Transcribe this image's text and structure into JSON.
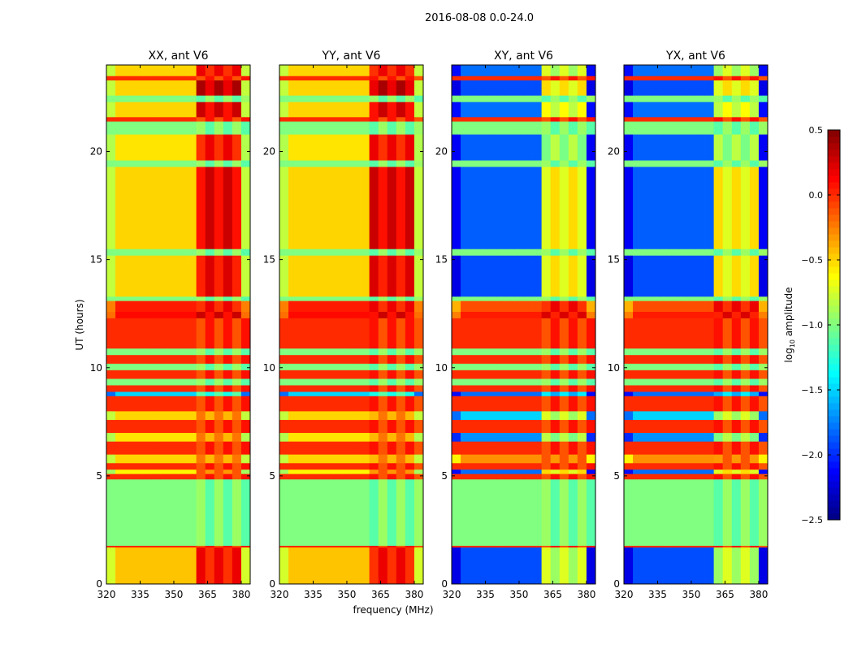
{
  "chart_data": {
    "type": "heatmap",
    "suptitle": "2016-08-08 0.0-24.0",
    "xlabel": "frequency (MHz)",
    "ylabel": "UT (hours)",
    "xlim": [
      320,
      384
    ],
    "ylim": [
      0,
      24
    ],
    "xticks": [
      "320",
      "335",
      "350",
      "365",
      "380"
    ],
    "xtick_values": [
      320,
      335,
      350,
      365,
      380
    ],
    "yticks": [
      "0",
      "5",
      "10",
      "15",
      "20"
    ],
    "ytick_values": [
      0,
      5,
      10,
      15,
      20
    ],
    "panels": [
      {
        "title": "XX, ant V6",
        "kind": "parallel"
      },
      {
        "title": "YY, ant V6",
        "kind": "parallel"
      },
      {
        "title": "XY, ant V6",
        "kind": "cross"
      },
      {
        "title": "YX, ant V6",
        "kind": "cross"
      }
    ],
    "rfi_band_mhz": [
      362,
      382
    ],
    "band_columns": [
      "t_start_h",
      "t_end_h",
      "parallel_base",
      "parallel_rfi",
      "cross_base",
      "cross_rfi"
    ],
    "bands": [
      [
        0,
        1.7,
        -0.45,
        0.1,
        -1.9,
        -0.8
      ],
      [
        1.7,
        1.78,
        0,
        0,
        0,
        0
      ],
      [
        1.78,
        4.85,
        -1,
        -1,
        -1,
        -1
      ],
      [
        4.85,
        5.1,
        0,
        0,
        0,
        0
      ],
      [
        5.1,
        5.3,
        -0.6,
        -0.2,
        -1.8,
        -0.6
      ],
      [
        5.3,
        5.6,
        0,
        0,
        0,
        0
      ],
      [
        5.6,
        6.0,
        -0.5,
        -0.3,
        -0.3,
        -0.2
      ],
      [
        6.0,
        6.6,
        0,
        0,
        0,
        0
      ],
      [
        6.6,
        7.0,
        -0.55,
        -0.3,
        -1.7,
        -0.9
      ],
      [
        7.0,
        7.6,
        0,
        0,
        0,
        0
      ],
      [
        7.6,
        8.0,
        -0.5,
        -0.3,
        -1.5,
        -0.8
      ],
      [
        8.0,
        8.7,
        0,
        0,
        0,
        0
      ],
      [
        8.7,
        8.9,
        -1.5,
        -1.2,
        -1.8,
        -1.5
      ],
      [
        8.9,
        9.2,
        0,
        0,
        0,
        0
      ],
      [
        9.2,
        9.5,
        -1,
        -1,
        -1,
        -1
      ],
      [
        9.5,
        9.9,
        0,
        0,
        0,
        0
      ],
      [
        9.9,
        10.2,
        -1,
        -1,
        -1,
        -1
      ],
      [
        10.2,
        10.6,
        0,
        0,
        0,
        0
      ],
      [
        10.6,
        10.9,
        -1,
        -1,
        -1,
        -1
      ],
      [
        10.9,
        12.3,
        0,
        0,
        0,
        0
      ],
      [
        12.3,
        12.6,
        0.1,
        0.2,
        0.05,
        0.15
      ],
      [
        12.6,
        13.1,
        0.05,
        0.1,
        -0.1,
        0.1
      ],
      [
        13.1,
        13.3,
        -1,
        -1,
        -1,
        -1
      ],
      [
        13.3,
        15.2,
        -0.5,
        0.15,
        -1.9,
        -0.6
      ],
      [
        15.2,
        15.5,
        -1,
        -1,
        -1,
        -1
      ],
      [
        15.5,
        19.3,
        -0.5,
        0.2,
        -1.85,
        -0.6
      ],
      [
        19.3,
        19.6,
        -1,
        -1,
        -1,
        -1
      ],
      [
        19.6,
        20.8,
        -0.55,
        0.1,
        -1.85,
        -0.9
      ],
      [
        20.8,
        21.4,
        -1,
        -1,
        -1,
        -1
      ],
      [
        21.4,
        21.6,
        0,
        0,
        0,
        0
      ],
      [
        21.6,
        22.3,
        -0.5,
        0.2,
        -1.8,
        -0.7
      ],
      [
        22.3,
        22.6,
        -1,
        -1,
        -1,
        -1
      ],
      [
        22.6,
        23.3,
        -0.5,
        0.3,
        -1.9,
        -0.6
      ],
      [
        23.3,
        23.5,
        0,
        0,
        0,
        0
      ],
      [
        23.5,
        24,
        -0.5,
        0.1,
        -1.8,
        -0.8
      ]
    ],
    "colorbar": {
      "label": "log10 amplitude",
      "label_main": "log",
      "label_sub": "10",
      "label_rest": " amplitude",
      "vmin": -2.5,
      "vmax": 0.5,
      "colormap": "jet",
      "ticks": [
        "0.5",
        "0.0",
        "−0.5",
        "−1.0",
        "−1.5",
        "−2.0",
        "−2.5"
      ],
      "tick_values": [
        0.5,
        0.0,
        -0.5,
        -1.0,
        -1.5,
        -2.0,
        -2.5
      ]
    }
  }
}
